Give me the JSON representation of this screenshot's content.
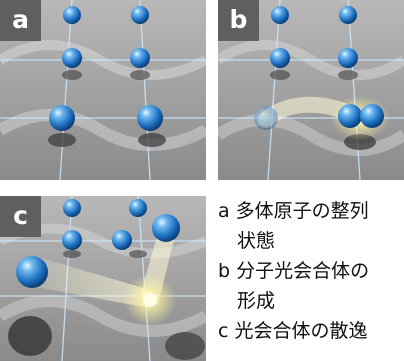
{
  "panels": [
    {
      "badge": "a"
    },
    {
      "badge": "b"
    },
    {
      "badge": "c"
    }
  ],
  "captions": [
    {
      "line1": "a 多体原子の整列",
      "line2": "状態"
    },
    {
      "line1": "b 分子光会合体の",
      "line2": "形成"
    },
    {
      "line1": "c 光会合体の散逸",
      "line2": ""
    }
  ],
  "colors": {
    "atom": "#2e86d6",
    "surface": "#9c9c9c",
    "badge": "#5f5f5f",
    "glow": "#fff6b0",
    "grid": "#cde9ff"
  }
}
